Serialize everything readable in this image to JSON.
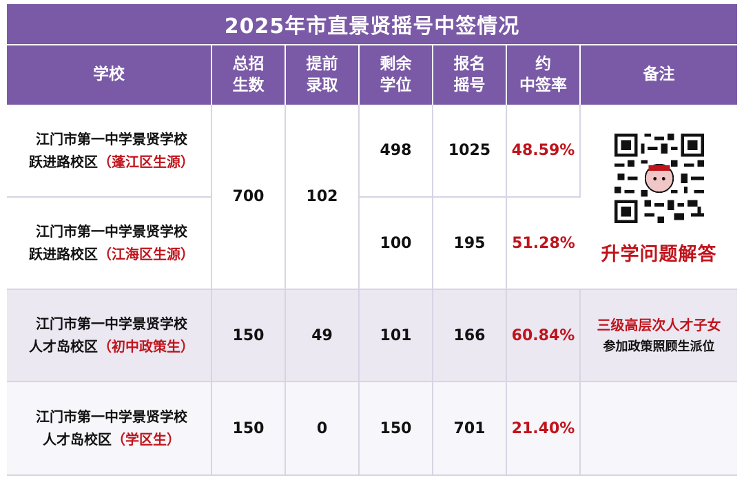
{
  "title": "2025年市直景贤摇号中签情况",
  "headers": {
    "school": "学校",
    "total": "总招\n生数",
    "early": "提前\n录取",
    "remaining": "剩余\n学位",
    "applied": "报名\n摇号",
    "rate": "约\n中签率",
    "note": "备注"
  },
  "rows": [
    {
      "school_line1": "江门市第一中学景贤学校",
      "school_line2": "跃进路校区",
      "school_tag": "（蓬江区生源）",
      "remaining": "498",
      "applied": "1025",
      "rate": "48.59%"
    },
    {
      "school_line1": "江门市第一中学景贤学校",
      "school_line2": "跃进路校区",
      "school_tag": "（江海区生源）",
      "remaining": "100",
      "applied": "195",
      "rate": "51.28%"
    },
    {
      "school_line1": "江门市第一中学景贤学校",
      "school_line2": "人才岛校区",
      "school_tag": "（初中政策生）",
      "total": "150",
      "early": "49",
      "remaining": "101",
      "applied": "166",
      "rate": "60.84%"
    },
    {
      "school_line1": "江门市第一中学景贤学校",
      "school_line2": "人才岛校区",
      "school_tag": "（学区生）",
      "total": "150",
      "early": "0",
      "remaining": "150",
      "applied": "701",
      "rate": "21.40%"
    }
  ],
  "merged": {
    "total": "700",
    "early": "102"
  },
  "notes": {
    "qr_icon": "qr-code-icon",
    "qa_label": "升学问题解答",
    "row3_line1": "三级高层次人才子女",
    "row3_line2": "参加政策照顾生派位"
  },
  "colors": {
    "header": "#7a5aa6",
    "accent_red": "#c0141c"
  }
}
